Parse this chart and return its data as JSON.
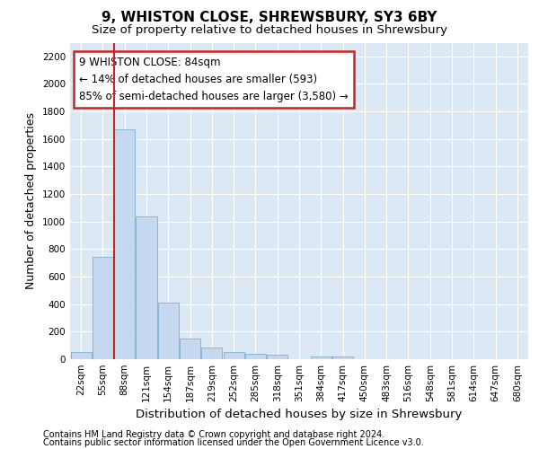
{
  "title": "9, WHISTON CLOSE, SHREWSBURY, SY3 6BY",
  "subtitle": "Size of property relative to detached houses in Shrewsbury",
  "xlabel": "Distribution of detached houses by size in Shrewsbury",
  "ylabel": "Number of detached properties",
  "footer1": "Contains HM Land Registry data © Crown copyright and database right 2024.",
  "footer2": "Contains public sector information licensed under the Open Government Licence v3.0.",
  "categories": [
    "22sqm",
    "55sqm",
    "88sqm",
    "121sqm",
    "154sqm",
    "187sqm",
    "219sqm",
    "252sqm",
    "285sqm",
    "318sqm",
    "351sqm",
    "384sqm",
    "417sqm",
    "450sqm",
    "483sqm",
    "516sqm",
    "548sqm",
    "581sqm",
    "614sqm",
    "647sqm",
    "680sqm"
  ],
  "values": [
    50,
    745,
    1670,
    1035,
    410,
    150,
    85,
    50,
    40,
    30,
    0,
    20,
    20,
    0,
    0,
    0,
    0,
    0,
    0,
    0,
    0
  ],
  "bar_color": "#c5d8f0",
  "bar_edge_color": "#7aafd4",
  "highlight_color": "#cc2222",
  "highlight_bar_idx": 2,
  "ylim": [
    0,
    2300
  ],
  "yticks": [
    0,
    200,
    400,
    600,
    800,
    1000,
    1200,
    1400,
    1600,
    1800,
    2000,
    2200
  ],
  "annotation_text_line1": "9 WHISTON CLOSE: 84sqm",
  "annotation_text_line2": "← 14% of detached houses are smaller (593)",
  "annotation_text_line3": "85% of semi-detached houses are larger (3,580) →",
  "annotation_box_color": "#ffffff",
  "annotation_border_color": "#cc2222",
  "fig_bg_color": "#ffffff",
  "plot_bg_color": "#dce9f5",
  "grid_color": "#ffffff",
  "title_fontsize": 11,
  "subtitle_fontsize": 9.5,
  "tick_fontsize": 7.5,
  "ylabel_fontsize": 9,
  "xlabel_fontsize": 9.5,
  "footer_fontsize": 7
}
